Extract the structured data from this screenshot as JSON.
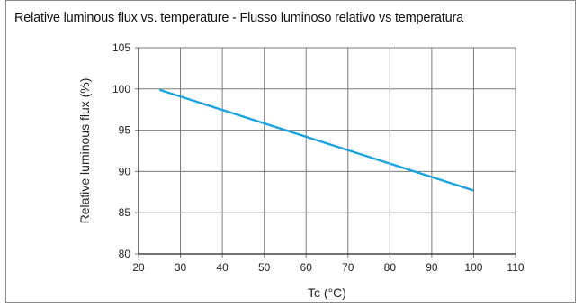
{
  "chart_data": {
    "type": "line",
    "title": "Relative luminous flux vs. temperature - Flusso luminoso relativo vs temperatura",
    "xlabel": "Tc (°C)",
    "ylabel": "Relative luminous flux (%)",
    "xlim": [
      20,
      110
    ],
    "ylim": [
      80,
      105
    ],
    "xticks": [
      "20",
      "30",
      "40",
      "50",
      "60",
      "70",
      "80",
      "90",
      "100",
      "110"
    ],
    "yticks": [
      "80",
      "85",
      "90",
      "95",
      "100",
      "105"
    ],
    "grid": true,
    "series": [
      {
        "color": "#1aa3e0",
        "x": [
          25,
          100
        ],
        "y": [
          99.9,
          87.7
        ]
      }
    ]
  }
}
